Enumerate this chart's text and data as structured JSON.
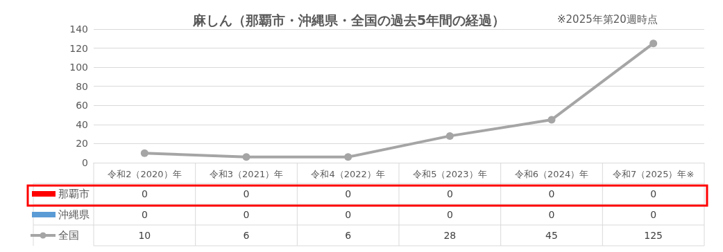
{
  "chart_data": {
    "type": "line",
    "title": "麻しん（那覇市・沖縄県・全国の過去5年間の経過）",
    "annotations": [
      "※2025年第20週時点"
    ],
    "categories": [
      "令和2（2020）年",
      "令和3（2021）年",
      "令和4（2022）年",
      "令和5（2023）年",
      "令和6（2024）年",
      "令和7（2025）年※"
    ],
    "series": [
      {
        "name": "那覇市",
        "type": "bar",
        "color": "#ff0000",
        "values": [
          0,
          0,
          0,
          0,
          0,
          0
        ]
      },
      {
        "name": "沖縄県",
        "type": "bar",
        "color": "#5b9bd5",
        "values": [
          0,
          0,
          0,
          0,
          0,
          0
        ]
      },
      {
        "name": "全国",
        "color": "#a5a5a5",
        "values": [
          10,
          6,
          6,
          28,
          45,
          125
        ]
      }
    ],
    "ylim": [
      0,
      140
    ],
    "yticks": [
      0,
      20,
      40,
      60,
      80,
      100,
      120,
      140
    ],
    "grid": "y",
    "marker": "circle",
    "line_style": "solid",
    "data_labels": true
  }
}
